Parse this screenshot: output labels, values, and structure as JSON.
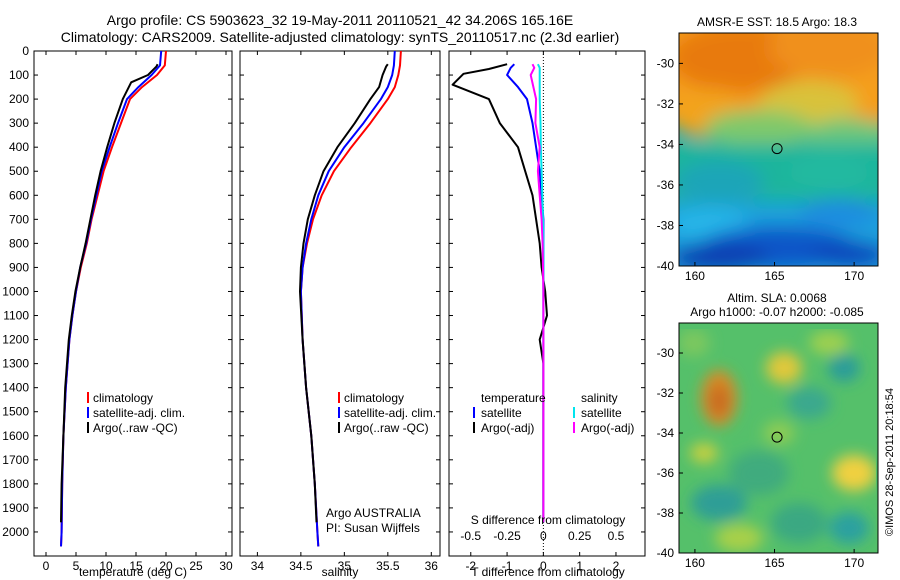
{
  "title": {
    "line1": "Argo profile: CS 5903623_32 19-May-2011 20110521_42 34.206S 165.16E",
    "line2": "Climatology: CARS2009. Satellite-adjusted climatology: synTS_20110517.nc (2.3d earlier)"
  },
  "colors": {
    "climatology": "#ff0000",
    "satellite": "#0000ff",
    "argo": "#000000",
    "sal_satellite": "#00e5ee",
    "sal_argo": "#ff00ff"
  },
  "chart_data": [
    {
      "type": "line",
      "panel": "temperature",
      "xlabel": "temperature (deg C)",
      "xlim": [
        -2,
        31
      ],
      "xticks": [
        "0",
        "5",
        "10",
        "15",
        "20",
        "25",
        "30"
      ],
      "xtick_values": [
        0,
        5,
        10,
        15,
        20,
        25,
        30
      ],
      "ylim": [
        2100,
        0
      ],
      "yticks": [
        "0",
        "100",
        "200",
        "300",
        "400",
        "500",
        "600",
        "700",
        "800",
        "900",
        "1000",
        "1100",
        "1200",
        "1300",
        "1400",
        "1500",
        "1600",
        "1700",
        "1800",
        "1900",
        "2000"
      ],
      "ytick_values": [
        0,
        100,
        200,
        300,
        400,
        500,
        600,
        700,
        800,
        900,
        1000,
        1100,
        1200,
        1300,
        1400,
        1500,
        1600,
        1700,
        1800,
        1900,
        2000
      ],
      "legend": [
        "climatology",
        "satellite-adj. clim.",
        "Argo(..raw -QC)"
      ],
      "legend_position": "bottom-center",
      "series": [
        {
          "name": "climatology",
          "color_key": "climatology",
          "x": [
            20.0,
            19.8,
            18.5,
            16.0,
            14.0,
            12.5,
            11.0,
            9.6,
            8.6,
            7.6,
            6.8,
            5.8,
            5.0,
            4.4,
            3.9,
            3.3,
            2.9,
            2.7,
            2.6,
            2.5
          ],
          "y": [
            0,
            60,
            100,
            150,
            200,
            300,
            400,
            500,
            600,
            700,
            800,
            900,
            1000,
            1100,
            1200,
            1400,
            1600,
            1800,
            2000,
            2060
          ]
        },
        {
          "name": "satellite-adj. clim.",
          "color_key": "satellite",
          "x": [
            19.2,
            19.0,
            17.6,
            15.4,
            13.5,
            12.0,
            10.6,
            9.3,
            8.4,
            7.5,
            6.7,
            5.7,
            5.0,
            4.4,
            3.9,
            3.3,
            2.9,
            2.7,
            2.6,
            2.5
          ],
          "y": [
            0,
            60,
            100,
            150,
            200,
            300,
            400,
            500,
            600,
            700,
            800,
            900,
            1000,
            1100,
            1200,
            1400,
            1600,
            1800,
            2000,
            2060
          ]
        },
        {
          "name": "Argo(..raw -QC)",
          "color_key": "argo",
          "x": [
            18.6,
            18.4,
            17.0,
            14.2,
            12.8,
            11.4,
            10.2,
            9.1,
            8.2,
            7.4,
            6.6,
            5.7,
            4.9,
            4.3,
            3.8,
            3.2,
            2.9,
            2.6,
            2.5
          ],
          "y": [
            55,
            65,
            100,
            130,
            200,
            300,
            400,
            500,
            600,
            700,
            800,
            900,
            1000,
            1100,
            1200,
            1400,
            1600,
            1800,
            1960
          ]
        }
      ]
    },
    {
      "type": "line",
      "panel": "salinity",
      "xlabel": "salinity",
      "xlim": [
        33.8,
        36.1
      ],
      "xticks": [
        "34",
        "34.5",
        "35",
        "35.5",
        "36"
      ],
      "xtick_values": [
        34,
        34.5,
        35,
        35.5,
        36
      ],
      "ylim": [
        2100,
        0
      ],
      "legend": [
        "climatology",
        "satellite-adj. clim.",
        "Argo(..raw -QC)"
      ],
      "legend_position": "bottom-center",
      "annotation": [
        "Argo AUSTRALIA",
        "PI: Susan Wijffels"
      ],
      "series": [
        {
          "name": "climatology",
          "color_key": "climatology",
          "x": [
            35.65,
            35.64,
            35.62,
            35.58,
            35.5,
            35.3,
            35.08,
            34.88,
            34.74,
            34.64,
            34.57,
            34.52,
            34.5,
            34.52,
            34.56,
            34.62,
            34.66,
            34.69,
            34.7
          ],
          "y": [
            0,
            60,
            100,
            150,
            200,
            300,
            400,
            500,
            600,
            700,
            800,
            900,
            1000,
            1200,
            1400,
            1600,
            1800,
            2000,
            2060
          ]
        },
        {
          "name": "satellite-adj. clim.",
          "color_key": "satellite",
          "x": [
            35.58,
            35.57,
            35.55,
            35.5,
            35.42,
            35.22,
            35.0,
            34.82,
            34.7,
            34.62,
            34.56,
            34.52,
            34.5,
            34.52,
            34.56,
            34.62,
            34.66,
            34.69,
            34.7
          ],
          "y": [
            0,
            60,
            100,
            150,
            200,
            300,
            400,
            500,
            600,
            700,
            800,
            900,
            1000,
            1200,
            1400,
            1600,
            1800,
            2000,
            2060
          ]
        },
        {
          "name": "Argo(..raw -QC)",
          "color_key": "argo",
          "x": [
            35.5,
            35.48,
            35.44,
            35.4,
            35.3,
            35.12,
            34.92,
            34.76,
            34.66,
            34.58,
            34.53,
            34.5,
            34.49,
            34.52,
            34.56,
            34.62,
            34.66,
            34.68
          ],
          "y": [
            55,
            65,
            100,
            150,
            200,
            300,
            400,
            500,
            600,
            700,
            800,
            900,
            1000,
            1200,
            1400,
            1600,
            1800,
            1960
          ]
        }
      ]
    },
    {
      "type": "line",
      "panel": "difference",
      "xlabel": "T difference from climatology",
      "xlabel_top": "S difference from climatology",
      "xlim": [
        -2.6,
        2.8
      ],
      "xticks": [
        "-2",
        "-1",
        "0",
        "1",
        "2"
      ],
      "xtick_values": [
        -2,
        -1,
        0,
        1,
        2
      ],
      "xticks_s": [
        "-0.5",
        "-0.25",
        "0",
        "0.25",
        "0.5"
      ],
      "ylim": [
        2100,
        0
      ],
      "legend_temperature_title": "temperature",
      "legend_salinity_title": "salinity",
      "legend": [
        "satellite",
        "Argo(-adj)",
        "satellite",
        "Argo(-adj)"
      ],
      "series": [
        {
          "name": "satellite",
          "group": "temperature",
          "color_key": "satellite",
          "x": [
            -0.8,
            -0.9,
            -1.0,
            -0.7,
            -0.45,
            -0.3,
            -0.2,
            -0.1,
            -0.05,
            0.0,
            0.0,
            0.0,
            0.0,
            0.0
          ],
          "y": [
            55,
            70,
            100,
            150,
            200,
            300,
            400,
            500,
            600,
            700,
            800,
            1000,
            1400,
            1960
          ]
        },
        {
          "name": "Argo(-adj)",
          "group": "temperature",
          "color_key": "argo",
          "x": [
            -1.0,
            -1.5,
            -2.2,
            -2.5,
            -1.5,
            -1.2,
            -0.7,
            -0.5,
            -0.3,
            -0.2,
            -0.1,
            -0.05,
            0.05,
            0.1,
            0.0,
            -0.1,
            0.0,
            0.0,
            0.0,
            0.0
          ],
          "y": [
            55,
            75,
            95,
            140,
            200,
            300,
            400,
            500,
            600,
            700,
            800,
            900,
            1000,
            1100,
            1150,
            1200,
            1300,
            1400,
            1700,
            1960
          ]
        },
        {
          "name": "satellite",
          "group": "salinity",
          "color_key": "sal_satellite",
          "x": [
            -0.15,
            -0.1,
            -0.1,
            -0.1,
            -0.08,
            -0.07,
            -0.05,
            -0.03,
            -0.01,
            0.0,
            0.0,
            0.0,
            0.0
          ],
          "y": [
            55,
            70,
            100,
            200,
            300,
            400,
            500,
            600,
            700,
            800,
            1000,
            1400,
            1960
          ]
        },
        {
          "name": "Argo(-adj)",
          "group": "salinity",
          "color_key": "sal_argo",
          "x": [
            -0.3,
            -0.25,
            -0.35,
            -0.2,
            -0.22,
            -0.1,
            -0.15,
            -0.1,
            -0.05,
            -0.02,
            0.0,
            0.0,
            0.0
          ],
          "y": [
            55,
            70,
            100,
            200,
            300,
            400,
            500,
            600,
            700,
            800,
            1000,
            1400,
            1960
          ]
        }
      ]
    },
    {
      "type": "heatmap",
      "panel": "sst_map",
      "title": "AMSR-E SST: 18.5 Argo: 18.3",
      "xlim": [
        159,
        171.5
      ],
      "ylim": [
        -40,
        -28.5
      ],
      "xticks": [
        "160",
        "165",
        "170"
      ],
      "xtick_values": [
        160,
        165,
        170
      ],
      "yticks": [
        "-30",
        "-32",
        "-34",
        "-36",
        "-38",
        "-40"
      ],
      "ytick_values": [
        -30,
        -32,
        -34,
        -36,
        -38,
        -40
      ],
      "marker": {
        "lon": 165.16,
        "lat": -34.206
      }
    },
    {
      "type": "heatmap",
      "panel": "sla_map",
      "title_line1": "Altim. SLA: 0.0068",
      "title_line2": "Argo h1000: -0.07 h2000: -0.085",
      "xlim": [
        159,
        171.5
      ],
      "ylim": [
        -40,
        -28.5
      ],
      "xticks": [
        "160",
        "165",
        "170"
      ],
      "xtick_values": [
        160,
        165,
        170
      ],
      "yticks": [
        "-30",
        "-32",
        "-34",
        "-36",
        "-38",
        "-40"
      ],
      "ytick_values": [
        -30,
        -32,
        -34,
        -36,
        -38,
        -40
      ],
      "marker": {
        "lon": 165.16,
        "lat": -34.206
      }
    }
  ],
  "credit": "©IMOS 28-Sep-2011 20:18:54"
}
